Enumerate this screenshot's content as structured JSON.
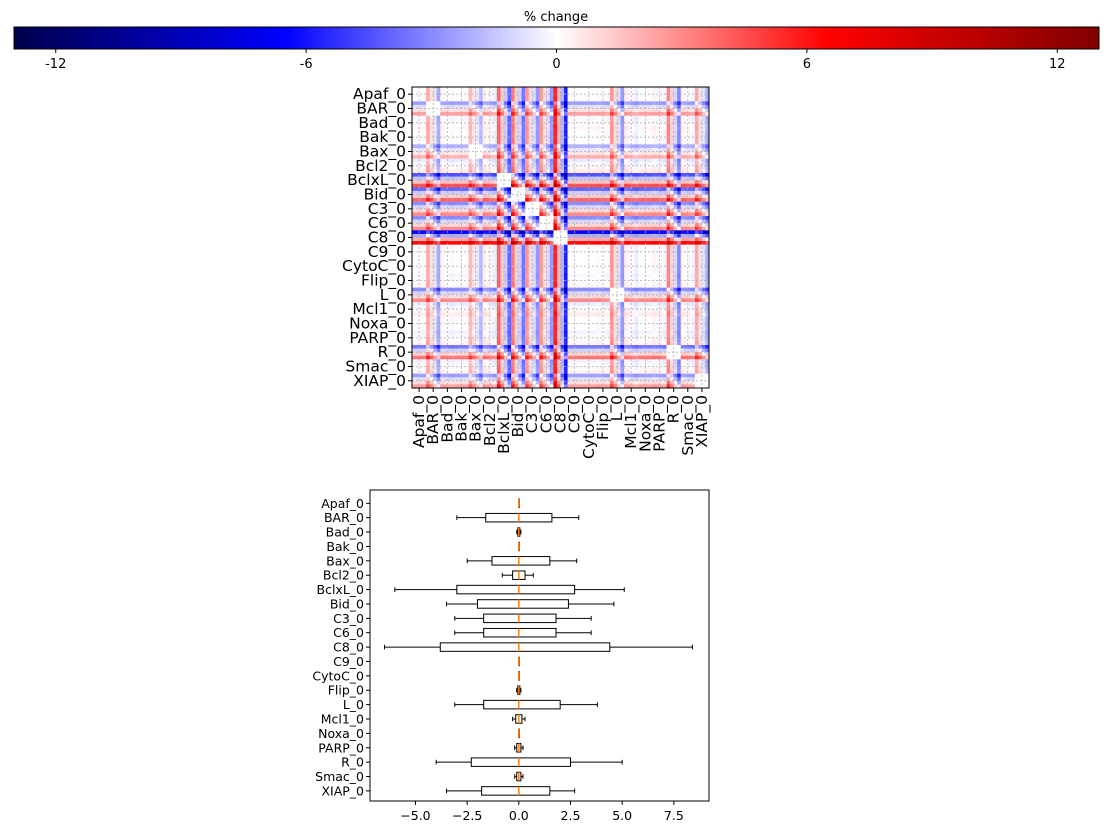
{
  "species": [
    "Apaf_0",
    "BAR_0",
    "Bad_0",
    "Bak_0",
    "Bax_0",
    "Bcl2_0",
    "BclxL_0",
    "Bid_0",
    "C3_0",
    "C6_0",
    "C8_0",
    "C9_0",
    "CytoC_0",
    "Flip_0",
    "L_0",
    "Mcl1_0",
    "Noxa_0",
    "PARP_0",
    "R_0",
    "Smac_0",
    "XIAP_0"
  ],
  "chart_data": [
    {
      "type": "heatmap",
      "title": "",
      "colorbar": {
        "label": "% change",
        "ticks": [
          -12,
          -6,
          0,
          6,
          12
        ],
        "tick_labels": [
          "-12",
          "-6",
          "0",
          "6",
          "12"
        ],
        "range": [
          -13,
          13
        ],
        "colormap": "seismic",
        "colors": {
          "neg_end": "#00004c",
          "neg": "#0000ff",
          "mid": "#ffffff",
          "pos": "#ff0000",
          "pos_end": "#800000"
        }
      },
      "rows": [
        "Apaf_0",
        "BAR_0",
        "Bad_0",
        "Bak_0",
        "Bax_0",
        "Bcl2_0",
        "BclxL_0",
        "Bid_0",
        "C3_0",
        "C6_0",
        "C8_0",
        "C9_0",
        "CytoC_0",
        "Flip_0",
        "L_0",
        "Mcl1_0",
        "Noxa_0",
        "PARP_0",
        "R_0",
        "Smac_0",
        "XIAP_0"
      ],
      "columns": [
        "Apaf_0",
        "BAR_0",
        "Bad_0",
        "Bak_0",
        "Bax_0",
        "Bcl2_0",
        "BclxL_0",
        "Bid_0",
        "C3_0",
        "C6_0",
        "C8_0",
        "C9_0",
        "CytoC_0",
        "Flip_0",
        "L_0",
        "Mcl1_0",
        "Noxa_0",
        "PARP_0",
        "R_0",
        "Smac_0",
        "XIAP_0"
      ],
      "row_strength": [
        0,
        0.25,
        0.02,
        0,
        0.2,
        0.05,
        0.45,
        0.4,
        0.3,
        0.3,
        0.65,
        0,
        0,
        0.02,
        0.3,
        0.05,
        0,
        0.03,
        0.35,
        0.03,
        0.25
      ],
      "grid": true
    },
    {
      "type": "boxplot",
      "orientation": "horizontal",
      "categories": [
        "Apaf_0",
        "BAR_0",
        "Bad_0",
        "Bak_0",
        "Bax_0",
        "Bcl2_0",
        "BclxL_0",
        "Bid_0",
        "C3_0",
        "C6_0",
        "C8_0",
        "C9_0",
        "CytoC_0",
        "Flip_0",
        "L_0",
        "Mcl1_0",
        "Noxa_0",
        "PARP_0",
        "R_0",
        "Smac_0",
        "XIAP_0"
      ],
      "boxes": [
        {
          "name": "Apaf_0",
          "whislo": 0,
          "q1": 0,
          "med": 0,
          "q3": 0,
          "whishi": 0
        },
        {
          "name": "BAR_0",
          "whislo": -3.0,
          "q1": -1.6,
          "med": 0,
          "q3": 1.6,
          "whishi": 2.9
        },
        {
          "name": "Bad_0",
          "whislo": -0.1,
          "q1": -0.05,
          "med": 0,
          "q3": 0.05,
          "whishi": 0.1
        },
        {
          "name": "Bak_0",
          "whislo": 0,
          "q1": 0,
          "med": 0,
          "q3": 0,
          "whishi": 0
        },
        {
          "name": "Bax_0",
          "whislo": -2.5,
          "q1": -1.3,
          "med": 0,
          "q3": 1.5,
          "whishi": 2.8
        },
        {
          "name": "Bcl2_0",
          "whislo": -0.8,
          "q1": -0.3,
          "med": 0,
          "q3": 0.3,
          "whishi": 0.7
        },
        {
          "name": "BclxL_0",
          "whislo": -6.0,
          "q1": -3.0,
          "med": 0,
          "q3": 2.7,
          "whishi": 5.1
        },
        {
          "name": "Bid_0",
          "whislo": -3.5,
          "q1": -2.0,
          "med": 0,
          "q3": 2.4,
          "whishi": 4.6
        },
        {
          "name": "C3_0",
          "whislo": -3.1,
          "q1": -1.7,
          "med": 0,
          "q3": 1.8,
          "whishi": 3.5
        },
        {
          "name": "C6_0",
          "whislo": -3.1,
          "q1": -1.7,
          "med": 0,
          "q3": 1.8,
          "whishi": 3.5
        },
        {
          "name": "C8_0",
          "whislo": -6.5,
          "q1": -3.8,
          "med": 0,
          "q3": 4.4,
          "whishi": 8.4
        },
        {
          "name": "C9_0",
          "whislo": 0,
          "q1": 0,
          "med": 0,
          "q3": 0,
          "whishi": 0
        },
        {
          "name": "CytoC_0",
          "whislo": 0,
          "q1": 0,
          "med": 0,
          "q3": 0,
          "whishi": 0
        },
        {
          "name": "Flip_0",
          "whislo": -0.1,
          "q1": -0.05,
          "med": 0,
          "q3": 0.05,
          "whishi": 0.1
        },
        {
          "name": "L_0",
          "whislo": -3.1,
          "q1": -1.7,
          "med": 0,
          "q3": 2.0,
          "whishi": 3.8
        },
        {
          "name": "Mcl1_0",
          "whislo": -0.3,
          "q1": -0.15,
          "med": 0,
          "q3": 0.15,
          "whishi": 0.3
        },
        {
          "name": "Noxa_0",
          "whislo": 0,
          "q1": 0,
          "med": 0,
          "q3": 0,
          "whishi": 0
        },
        {
          "name": "PARP_0",
          "whislo": -0.2,
          "q1": -0.1,
          "med": 0,
          "q3": 0.1,
          "whishi": 0.2
        },
        {
          "name": "R_0",
          "whislo": -4.0,
          "q1": -2.3,
          "med": 0,
          "q3": 2.5,
          "whishi": 5.0
        },
        {
          "name": "Smac_0",
          "whislo": -0.2,
          "q1": -0.1,
          "med": 0,
          "q3": 0.1,
          "whishi": 0.2
        },
        {
          "name": "XIAP_0",
          "whislo": -3.5,
          "q1": -1.8,
          "med": 0,
          "q3": 1.5,
          "whishi": 2.7
        }
      ],
      "xlim": [
        -7.2,
        9.2
      ],
      "xticks": [
        -5.0,
        -2.5,
        0.0,
        2.5,
        5.0,
        7.5
      ],
      "xtick_labels": [
        "−5.0",
        "−2.5",
        "0.0",
        "2.5",
        "5.0",
        "7.5"
      ],
      "colors": {
        "box": "#000000",
        "median": "#ff7f0e"
      },
      "xlabel": "",
      "ylabel": ""
    }
  ]
}
